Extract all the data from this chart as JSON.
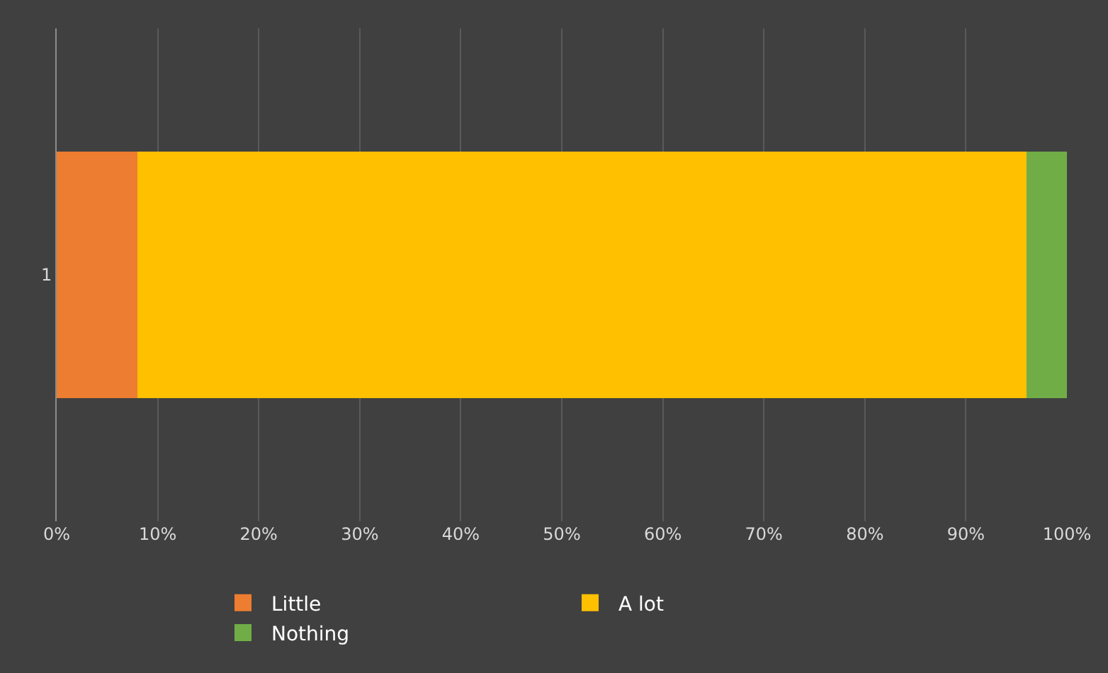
{
  "chart_data": {
    "type": "bar",
    "orientation": "horizontal",
    "stacked": true,
    "categories": [
      "1"
    ],
    "series": [
      {
        "name": "Little",
        "color": "#ed7d31",
        "values": [
          8
        ]
      },
      {
        "name": "A lot",
        "color": "#ffc000",
        "values": [
          88
        ]
      },
      {
        "name": "Nothing",
        "color": "#70ad47",
        "values": [
          4
        ]
      }
    ],
    "xlim": [
      0,
      100
    ],
    "xticks": [
      {
        "value": 0,
        "label": "0%"
      },
      {
        "value": 10,
        "label": "10%"
      },
      {
        "value": 20,
        "label": "20%"
      },
      {
        "value": 30,
        "label": "30%"
      },
      {
        "value": 40,
        "label": "40%"
      },
      {
        "value": 50,
        "label": "50%"
      },
      {
        "value": 60,
        "label": "60%"
      },
      {
        "value": 70,
        "label": "70%"
      },
      {
        "value": 80,
        "label": "80%"
      },
      {
        "value": 90,
        "label": "90%"
      },
      {
        "value": 100,
        "label": "100%"
      }
    ],
    "grid": "x",
    "legend": "bottom"
  }
}
